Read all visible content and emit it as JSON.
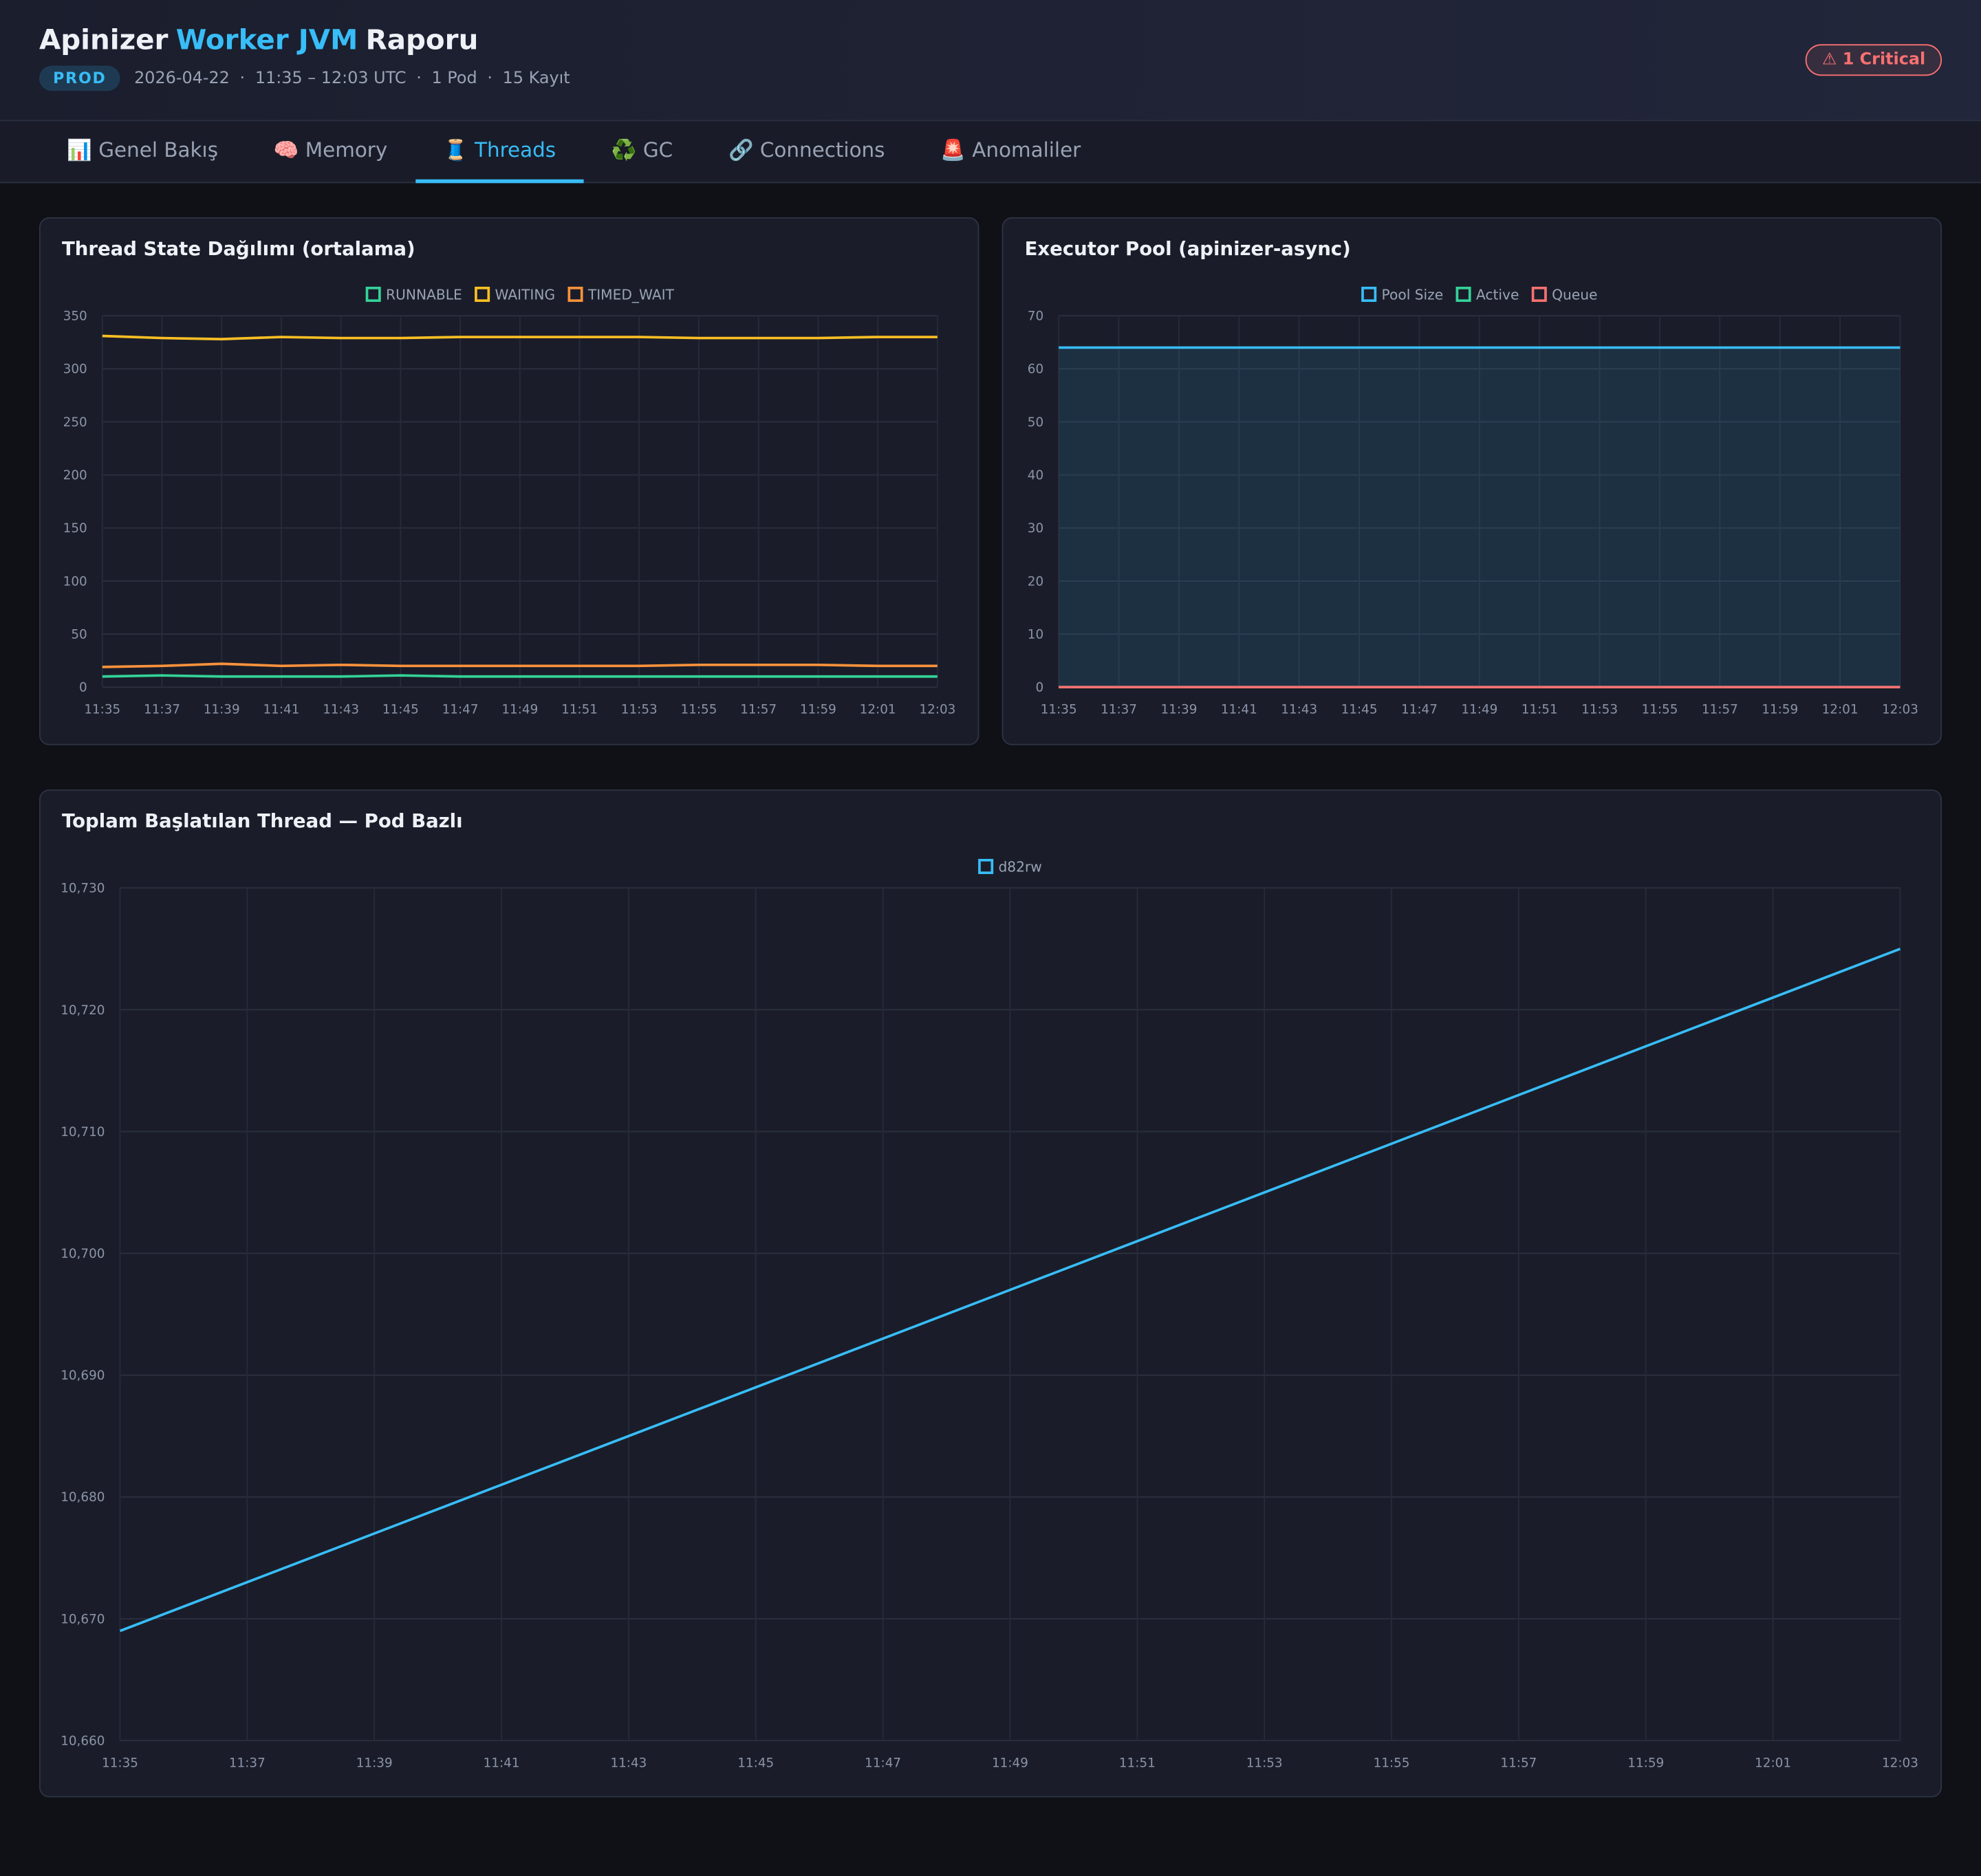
{
  "header": {
    "title": [
      "Apinizer",
      "Worker JVM",
      "Raporu"
    ],
    "env": "PROD",
    "meta": [
      "2026-04-22",
      "11:35 – 12:03 UTC",
      "1 Pod",
      "15 Kayıt"
    ],
    "alert": "⚠ 1 Critical"
  },
  "tabs": [
    "📊 Genel Bakış",
    "🧠 Memory",
    "🧵 Threads",
    "♻️ GC",
    "🔗 Connections",
    "🚨 Anomaliler"
  ],
  "chart_data": [
    {
      "type": "line",
      "title": "Thread State Dağılımı (ortalama)",
      "categories": [
        "11:35",
        "11:37",
        "11:39",
        "11:41",
        "11:43",
        "11:45",
        "11:47",
        "11:49",
        "11:51",
        "11:53",
        "11:55",
        "11:57",
        "11:59",
        "12:01",
        "12:03"
      ],
      "ylim": [
        0,
        350
      ],
      "yticks": [
        0,
        50,
        100,
        150,
        200,
        250,
        300,
        350
      ],
      "grid": true,
      "series": [
        {
          "name": "RUNNABLE",
          "color": "#34d399",
          "values": [
            10,
            11,
            10,
            10,
            10,
            11,
            10,
            10,
            10,
            10,
            10,
            10,
            10,
            10,
            10
          ]
        },
        {
          "name": "WAITING",
          "color": "#fbbf24",
          "values": [
            331,
            329,
            328,
            330,
            329,
            329,
            330,
            330,
            330,
            330,
            329,
            329,
            329,
            330,
            330
          ]
        },
        {
          "name": "TIMED_WAIT",
          "color": "#fb923c",
          "values": [
            19,
            20,
            22,
            20,
            21,
            20,
            20,
            20,
            20,
            20,
            21,
            21,
            21,
            20,
            20
          ]
        }
      ]
    },
    {
      "type": "line",
      "title": "Executor Pool (apinizer-async)",
      "categories": [
        "11:35",
        "11:37",
        "11:39",
        "11:41",
        "11:43",
        "11:45",
        "11:47",
        "11:49",
        "11:51",
        "11:53",
        "11:55",
        "11:57",
        "11:59",
        "12:01",
        "12:03"
      ],
      "ylim": [
        0,
        70
      ],
      "yticks": [
        0,
        10,
        20,
        30,
        40,
        50,
        60,
        70
      ],
      "grid": true,
      "series": [
        {
          "name": "Pool Size",
          "color": "#38bdf8",
          "fill": true,
          "values": [
            64,
            64,
            64,
            64,
            64,
            64,
            64,
            64,
            64,
            64,
            64,
            64,
            64,
            64,
            64
          ]
        },
        {
          "name": "Active",
          "color": "#34d399",
          "values": [
            0,
            0,
            0,
            0,
            0,
            0,
            0,
            0,
            0,
            0,
            0,
            0,
            0,
            0,
            0
          ]
        },
        {
          "name": "Queue",
          "color": "#f87171",
          "values": [
            0,
            0,
            0,
            0,
            0,
            0,
            0,
            0,
            0,
            0,
            0,
            0,
            0,
            0,
            0
          ]
        }
      ]
    },
    {
      "type": "line",
      "title": "Toplam Başlatılan Thread — Pod Bazlı",
      "categories": [
        "11:35",
        "11:37",
        "11:39",
        "11:41",
        "11:43",
        "11:45",
        "11:47",
        "11:49",
        "11:51",
        "11:53",
        "11:55",
        "11:57",
        "11:59",
        "12:01",
        "12:03"
      ],
      "ylim": [
        10660,
        10730
      ],
      "yticks": [
        {
          "value": 10660,
          "label": "10,660"
        },
        {
          "value": 10670,
          "label": "10,670"
        },
        {
          "value": 10680,
          "label": "10,680"
        },
        {
          "value": 10690,
          "label": "10,690"
        },
        {
          "value": 10700,
          "label": "10,700"
        },
        {
          "value": 10710,
          "label": "10,710"
        },
        {
          "value": 10720,
          "label": "10,720"
        },
        {
          "value": 10730,
          "label": "10,730"
        }
      ],
      "grid": true,
      "series": [
        {
          "name": "d82rw",
          "color": "#38bdf8",
          "values": [
            10669,
            10673,
            10677,
            10681,
            10685,
            10689,
            10693,
            10697,
            10701,
            10705,
            10709,
            10713,
            10717,
            10721,
            10725
          ]
        }
      ]
    }
  ]
}
